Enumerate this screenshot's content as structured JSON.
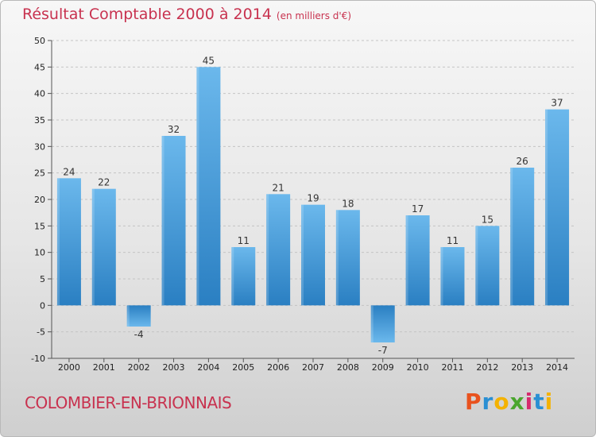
{
  "title": "Résultat Comptable 2000 à 2014",
  "subtitle": "(en milliers d'€)",
  "commune": "COLOMBIER-EN-BRIONNAIS",
  "brand": {
    "letters": [
      "P",
      "r",
      "o",
      "x",
      "i",
      "t",
      "i"
    ],
    "colors": [
      "#e9521e",
      "#2a8fd3",
      "#f4b200",
      "#4aa62d",
      "#d62b6e",
      "#2a8fd3",
      "#f4b200"
    ]
  },
  "colors": {
    "title": "#c8324f",
    "bar_light": "#6bb8ec",
    "bar_dark": "#2a7fc2"
  },
  "chart_data": {
    "type": "bar",
    "title": "Résultat Comptable 2000 à 2014",
    "subtitle": "(en milliers d'€)",
    "categories": [
      "2000",
      "2001",
      "2002",
      "2003",
      "2004",
      "2005",
      "2006",
      "2007",
      "2008",
      "2009",
      "2010",
      "2011",
      "2012",
      "2013",
      "2014"
    ],
    "values": [
      24,
      22,
      -4,
      32,
      45,
      11,
      21,
      19,
      18,
      -7,
      17,
      11,
      15,
      26,
      37
    ],
    "data_labels": [
      "24",
      "22",
      "-4",
      "32",
      "45",
      "11",
      "21",
      "19",
      "18",
      "-7",
      "17",
      "11",
      "15",
      "26",
      "37"
    ],
    "ylim": [
      -10,
      50
    ],
    "yticks": [
      -10,
      -5,
      0,
      5,
      10,
      15,
      20,
      25,
      30,
      35,
      40,
      45,
      50
    ],
    "grid": true,
    "legend": "none"
  }
}
